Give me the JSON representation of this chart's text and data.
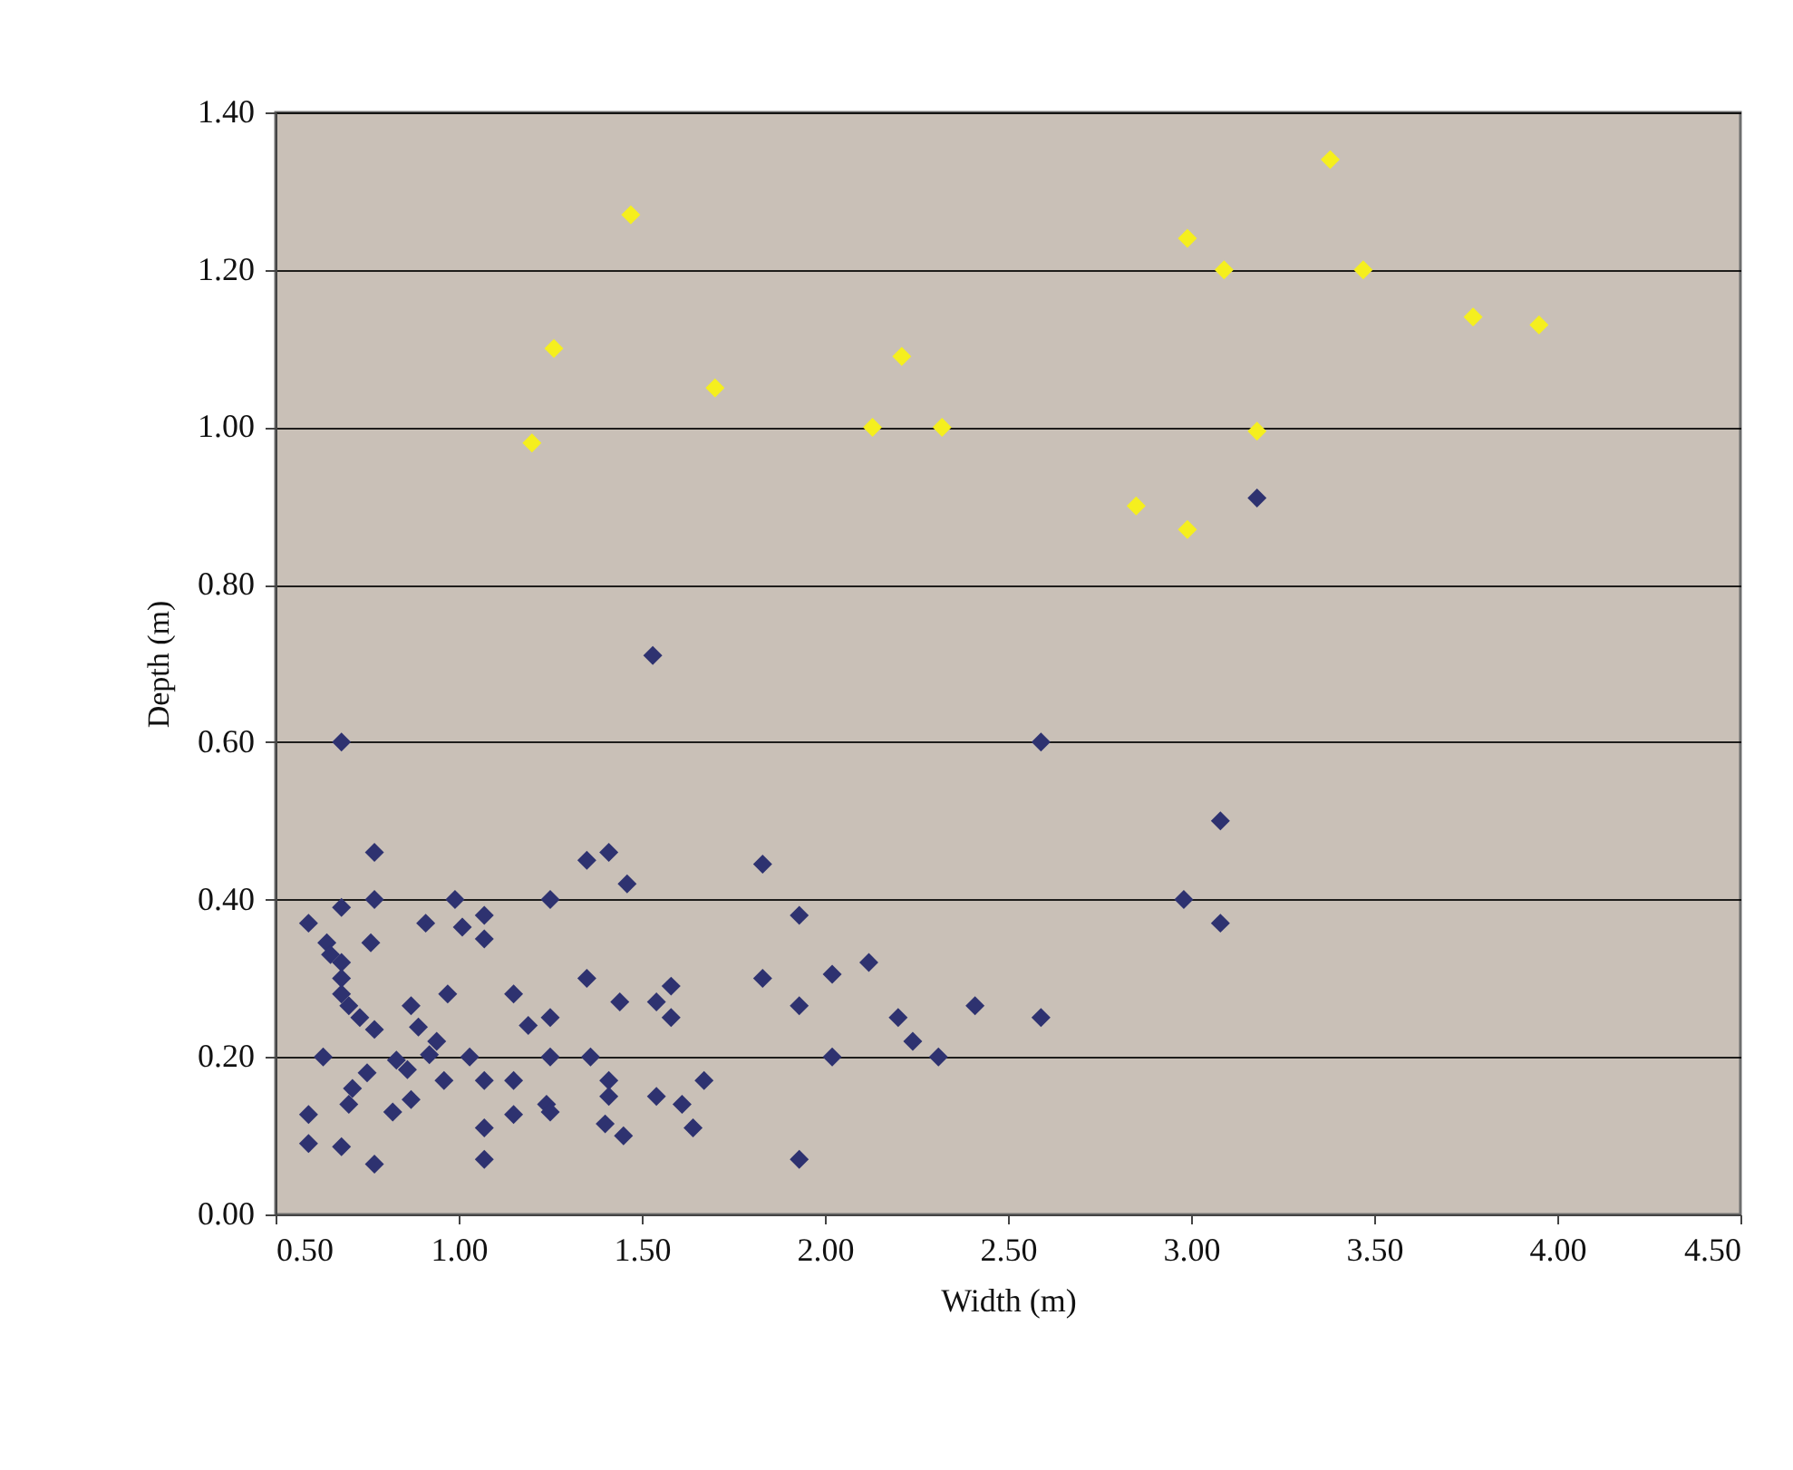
{
  "chart_data": {
    "type": "scatter",
    "xlabel": "Width (m)",
    "ylabel": "Depth (m)",
    "xlim": [
      0.5,
      4.5
    ],
    "ylim": [
      0,
      1.4
    ],
    "xticks": [
      {
        "value": 0.5,
        "label": "0.50"
      },
      {
        "value": 1,
        "label": "1.00"
      },
      {
        "value": 1.5,
        "label": "1.50"
      },
      {
        "value": 2,
        "label": "2.00"
      },
      {
        "value": 2.5,
        "label": "2.50"
      },
      {
        "value": 3,
        "label": "3.00"
      },
      {
        "value": 3.5,
        "label": "3.50"
      },
      {
        "value": 4,
        "label": "4.00"
      },
      {
        "value": 4.5,
        "label": "4.50"
      }
    ],
    "yticks": [
      {
        "value": 0,
        "label": "0.00"
      },
      {
        "value": 0.2,
        "label": "0.20"
      },
      {
        "value": 0.4,
        "label": "0.40"
      },
      {
        "value": 0.6,
        "label": "0.60"
      },
      {
        "value": 0.8,
        "label": "0.80"
      },
      {
        "value": 1,
        "label": "1.00"
      },
      {
        "value": 1.2,
        "label": "1.20"
      },
      {
        "value": 1.4,
        "label": "1.40"
      }
    ],
    "grid": "y",
    "marker": "diamond",
    "series": [
      {
        "color": "#2e3270",
        "x": [
          0.77,
          0.68,
          0.77,
          0.59,
          0.76,
          0.64,
          0.65,
          0.68,
          0.68,
          0.68,
          0.7,
          0.73,
          0.77,
          0.63,
          0.75,
          0.71,
          0.7,
          0.59,
          0.59,
          0.68,
          0.77,
          0.82,
          0.87,
          0.83,
          0.86,
          0.87,
          0.89,
          0.94,
          0.92,
          0.96,
          0.97,
          0.91,
          0.99,
          1.01,
          1.07,
          1.07,
          1.03,
          1.07,
          1.07,
          1.07,
          1.15,
          1.15,
          1.15,
          1.19,
          1.25,
          1.25,
          1.25,
          1.24,
          1.25,
          1.35,
          1.41,
          1.46,
          1.35,
          1.44,
          1.54,
          1.58,
          1.58,
          1.36,
          1.41,
          1.41,
          1.4,
          1.45,
          1.54,
          1.61,
          1.64,
          1.67,
          1.83,
          1.83,
          1.93,
          1.93,
          1.93,
          2.02,
          2.12,
          2.2,
          2.24,
          2.41,
          2.59,
          2.02,
          2.31,
          2.59,
          0.68,
          1.53,
          3.18,
          2.98,
          3.08,
          3.08
        ],
        "values": [
          0.46,
          0.39,
          0.4,
          0.37,
          0.345,
          0.345,
          0.33,
          0.32,
          0.3,
          0.28,
          0.265,
          0.25,
          0.235,
          0.2,
          0.18,
          0.16,
          0.14,
          0.127,
          0.09,
          0.086,
          0.064,
          0.13,
          0.146,
          0.196,
          0.184,
          0.265,
          0.238,
          0.22,
          0.203,
          0.17,
          0.28,
          0.37,
          0.4,
          0.365,
          0.38,
          0.35,
          0.2,
          0.17,
          0.11,
          0.07,
          0.28,
          0.17,
          0.127,
          0.24,
          0.25,
          0.4,
          0.2,
          0.14,
          0.13,
          0.45,
          0.46,
          0.42,
          0.3,
          0.27,
          0.27,
          0.29,
          0.25,
          0.2,
          0.17,
          0.15,
          0.115,
          0.1,
          0.15,
          0.14,
          0.11,
          0.17,
          0.445,
          0.3,
          0.38,
          0.265,
          0.07,
          0.305,
          0.32,
          0.25,
          0.22,
          0.265,
          0.25,
          0.2,
          0.2,
          0.6,
          0.6,
          0.71,
          0.91,
          0.4,
          0.5,
          0.37
        ]
      },
      {
        "color": "#f5ef1e",
        "x": [
          1.2,
          1.26,
          1.47,
          1.7,
          2.13,
          2.21,
          2.32,
          2.85,
          2.99,
          2.99,
          3.09,
          3.18,
          3.38,
          3.47,
          3.77,
          3.95
        ],
        "values": [
          0.98,
          1.1,
          1.27,
          1.05,
          1.0,
          1.09,
          1.0,
          0.9,
          0.87,
          1.24,
          1.2,
          0.995,
          1.34,
          1.2,
          1.14,
          1.13
        ]
      }
    ]
  }
}
